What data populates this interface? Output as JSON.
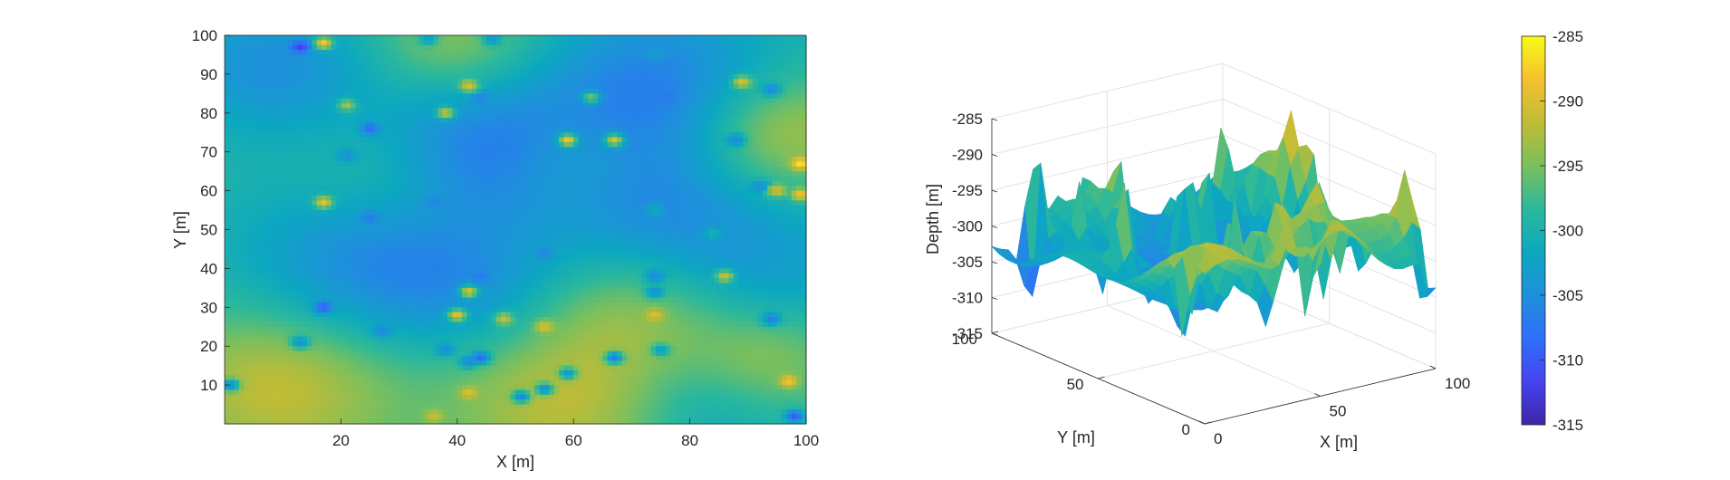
{
  "colors": {
    "colormap": [
      "#3e26a8",
      "#4743f0",
      "#2f6ffb",
      "#1e90db",
      "#0ca8c0",
      "#2bb89b",
      "#7bbf5d",
      "#c0bc36",
      "#f5c02f",
      "#f9fb15"
    ],
    "axis": "#262626",
    "grid": "#e3e3e3"
  },
  "chart_data": [
    {
      "type": "heatmap",
      "xlabel": "X [m]",
      "ylabel": "Y [m]",
      "xlim": [
        0,
        100
      ],
      "ylim": [
        0,
        100
      ],
      "xticks": [
        20,
        40,
        60,
        80,
        100
      ],
      "xtick_labels": [
        "20",
        "40",
        "60",
        "80",
        "100"
      ],
      "yticks": [
        10,
        20,
        30,
        40,
        50,
        60,
        70,
        80,
        90,
        100
      ],
      "ytick_labels": [
        "10",
        "20",
        "30",
        "40",
        "50",
        "60",
        "70",
        "80",
        "90",
        "100"
      ],
      "clim": [
        -315,
        -285
      ],
      "grid": false,
      "field": {
        "base": -299,
        "smooth_features": [
          {
            "x": 8,
            "y": 92,
            "value": -305,
            "radius": 12
          },
          {
            "x": 25,
            "y": 40,
            "value": -306,
            "radius": 16
          },
          {
            "x": 43,
            "y": 70,
            "value": -307,
            "radius": 13
          },
          {
            "x": 75,
            "y": 85,
            "value": -307,
            "radius": 16
          },
          {
            "x": 74,
            "y": 55,
            "value": -304,
            "radius": 13
          },
          {
            "x": 93,
            "y": 40,
            "value": -303,
            "radius": 13
          },
          {
            "x": 85,
            "y": 8,
            "value": -304,
            "radius": 11
          },
          {
            "x": 45,
            "y": 35,
            "value": -302,
            "radius": 12
          },
          {
            "x": 10,
            "y": 10,
            "value": -291,
            "radius": 15
          },
          {
            "x": 58,
            "y": 5,
            "value": -292,
            "radius": 14
          },
          {
            "x": 95,
            "y": 75,
            "value": -291,
            "radius": 11
          },
          {
            "x": 92,
            "y": 15,
            "value": -292,
            "radius": 10
          },
          {
            "x": 70,
            "y": 28,
            "value": -294,
            "radius": 12
          },
          {
            "x": 40,
            "y": 98,
            "value": -294,
            "radius": 10
          },
          {
            "x": 30,
            "y": 63,
            "value": -295,
            "radius": 11
          },
          {
            "x": 60,
            "y": 68,
            "value": -296,
            "radius": 9
          }
        ],
        "spikes": [
          {
            "x": 13,
            "y": 97,
            "value": -312
          },
          {
            "x": 17,
            "y": 98,
            "value": -288
          },
          {
            "x": 35,
            "y": 99,
            "value": -303
          },
          {
            "x": 46,
            "y": 99,
            "value": -304
          },
          {
            "x": 74,
            "y": 95,
            "value": -303
          },
          {
            "x": 42,
            "y": 87,
            "value": -290
          },
          {
            "x": 44,
            "y": 84,
            "value": -306
          },
          {
            "x": 63,
            "y": 84,
            "value": -295
          },
          {
            "x": 76,
            "y": 84,
            "value": -307
          },
          {
            "x": 89,
            "y": 88,
            "value": -290
          },
          {
            "x": 94,
            "y": 86,
            "value": -306
          },
          {
            "x": 21,
            "y": 82,
            "value": -293
          },
          {
            "x": 38,
            "y": 80,
            "value": -291
          },
          {
            "x": 25,
            "y": 76,
            "value": -309
          },
          {
            "x": 59,
            "y": 73,
            "value": -288
          },
          {
            "x": 67,
            "y": 73,
            "value": -290
          },
          {
            "x": 88,
            "y": 73,
            "value": -306
          },
          {
            "x": 21,
            "y": 69,
            "value": -305
          },
          {
            "x": 99,
            "y": 67,
            "value": -286
          },
          {
            "x": 92,
            "y": 61,
            "value": -305
          },
          {
            "x": 95,
            "y": 60,
            "value": -290
          },
          {
            "x": 99,
            "y": 59,
            "value": -288
          },
          {
            "x": 17,
            "y": 57,
            "value": -289
          },
          {
            "x": 36,
            "y": 57,
            "value": -306
          },
          {
            "x": 25,
            "y": 53,
            "value": -307
          },
          {
            "x": 74,
            "y": 55,
            "value": -301
          },
          {
            "x": 84,
            "y": 49,
            "value": -300
          },
          {
            "x": 55,
            "y": 44,
            "value": -306
          },
          {
            "x": 44,
            "y": 38,
            "value": -307
          },
          {
            "x": 74,
            "y": 38,
            "value": -306
          },
          {
            "x": 86,
            "y": 38,
            "value": -291
          },
          {
            "x": 42,
            "y": 34,
            "value": -290
          },
          {
            "x": 74,
            "y": 34,
            "value": -305
          },
          {
            "x": 17,
            "y": 30,
            "value": -310
          },
          {
            "x": 40,
            "y": 28,
            "value": -289
          },
          {
            "x": 48,
            "y": 27,
            "value": -291
          },
          {
            "x": 55,
            "y": 25,
            "value": -290
          },
          {
            "x": 74,
            "y": 28,
            "value": -290
          },
          {
            "x": 94,
            "y": 27,
            "value": -307
          },
          {
            "x": 27,
            "y": 24,
            "value": -306
          },
          {
            "x": 13,
            "y": 21,
            "value": -305
          },
          {
            "x": 38,
            "y": 19,
            "value": -305
          },
          {
            "x": 44,
            "y": 17,
            "value": -309
          },
          {
            "x": 67,
            "y": 17,
            "value": -307
          },
          {
            "x": 75,
            "y": 19,
            "value": -303
          },
          {
            "x": 59,
            "y": 13,
            "value": -304
          },
          {
            "x": 1,
            "y": 10,
            "value": -306
          },
          {
            "x": 42,
            "y": 8,
            "value": -290
          },
          {
            "x": 51,
            "y": 7,
            "value": -306
          },
          {
            "x": 55,
            "y": 9,
            "value": -305
          },
          {
            "x": 97,
            "y": 11,
            "value": -288
          },
          {
            "x": 98,
            "y": 2,
            "value": -310
          },
          {
            "x": 36,
            "y": 2,
            "value": -291
          },
          {
            "x": 42,
            "y": 16,
            "value": -306
          }
        ]
      }
    },
    {
      "type": "surface",
      "xlabel": "X [m]",
      "ylabel": "Y [m]",
      "zlabel": "Depth [m]",
      "xlim": [
        0,
        100
      ],
      "ylim": [
        0,
        100
      ],
      "zlim": [
        -315,
        -285
      ],
      "xticks": [
        0,
        50,
        100
      ],
      "xtick_labels": [
        "0",
        "50",
        "100"
      ],
      "yticks": [
        0,
        50,
        100
      ],
      "ytick_labels": [
        "0",
        "50",
        "100"
      ],
      "zticks": [
        -285,
        -290,
        -295,
        -300,
        -305,
        -310,
        -315
      ],
      "ztick_labels": [
        "-285",
        "-290",
        "-295",
        "-300",
        "-305",
        "-310",
        "-315"
      ],
      "grid": true,
      "note_same_field": "surface of the same depth field as the map"
    },
    {
      "type": "colorbar",
      "clim": [
        -315,
        -285
      ],
      "ticks": [
        -285,
        -290,
        -295,
        -300,
        -305,
        -310,
        -315
      ],
      "tick_labels": [
        "-285",
        "-290",
        "-295",
        "-300",
        "-305",
        "-310",
        "-315"
      ],
      "placement": "right"
    }
  ]
}
